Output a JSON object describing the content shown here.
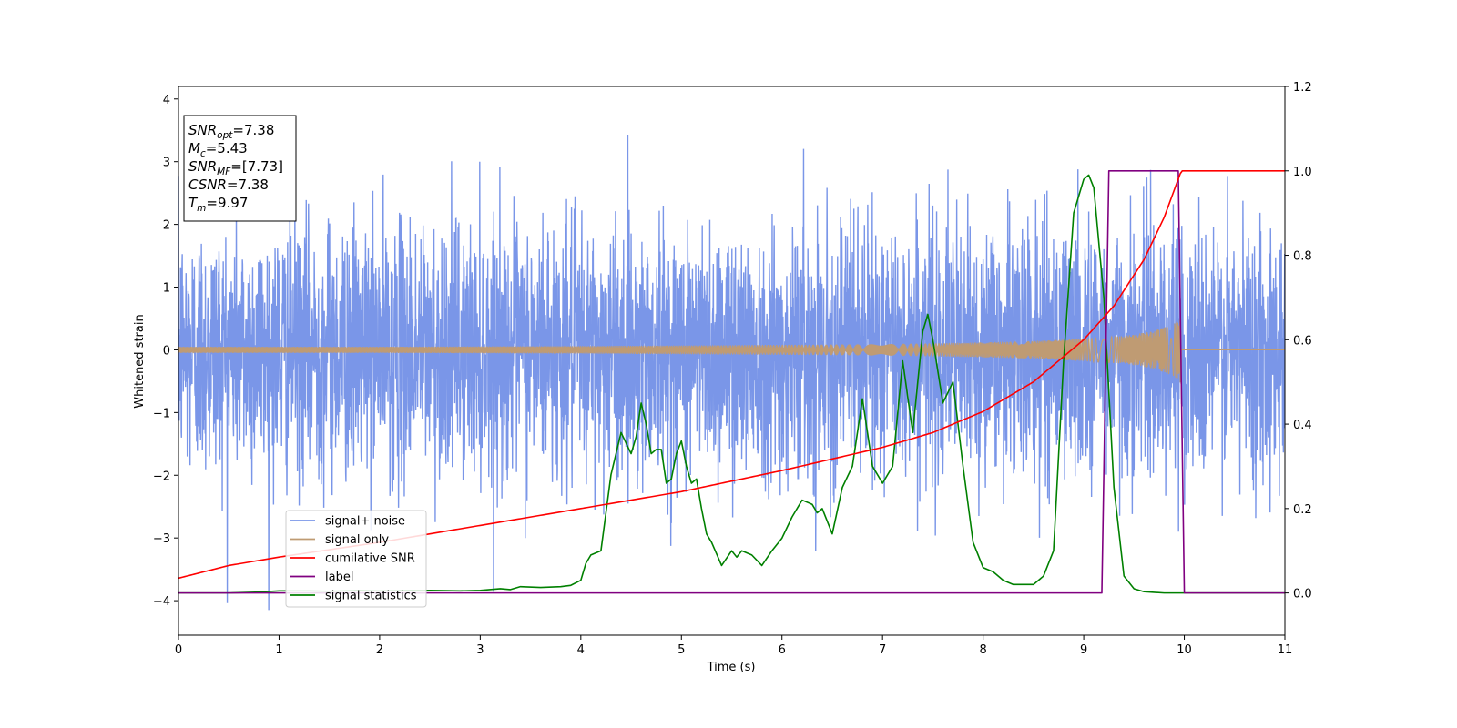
{
  "chart_data": {
    "type": "line",
    "xlabel": "Time (s)",
    "ylabel_left": "Whitened strain",
    "xlim": [
      0,
      11
    ],
    "ylim_left": [
      -4.55,
      4.2
    ],
    "ylim_right": [
      -0.1,
      1.2
    ],
    "x_ticks": [
      "0",
      "1",
      "2",
      "3",
      "4",
      "5",
      "6",
      "7",
      "8",
      "9",
      "10",
      "11"
    ],
    "y_left_ticks": [
      "4",
      "3",
      "2",
      "1",
      "0",
      "−1",
      "−2",
      "−3",
      "−4"
    ],
    "y_right_ticks": [
      "1.2",
      "1.0",
      "0.8",
      "0.6",
      "0.4",
      "0.2",
      "0.0"
    ],
    "grid": false,
    "legend_position": "lower-left",
    "info_box": [
      {
        "base": "SNR",
        "sub": "opt",
        "value": "=7.38"
      },
      {
        "base": "M",
        "sub": "c",
        "value": "=5.43"
      },
      {
        "base": "SNR",
        "sub": "MF",
        "value": "=[7.73]"
      },
      {
        "base": "CSNR",
        "sub": "",
        "value": "=7.38"
      },
      {
        "base": "T",
        "sub": "m",
        "value": "=9.97"
      }
    ],
    "series": [
      {
        "name": "signal+ noise",
        "axis": "left",
        "color": "#7a96e8",
        "description_stats": {
          "approx_std": 1.0,
          "approx_min": -4.15,
          "approx_max": 3.8,
          "samples_per_s": 400
        }
      },
      {
        "name": "signal only",
        "axis": "left",
        "color": "#bf9b73",
        "envelope": {
          "x": [
            0,
            2,
            4,
            6,
            7,
            8,
            8.5,
            9,
            9.4,
            9.7,
            9.9,
            9.97,
            10.0,
            11
          ],
          "amp": [
            0.05,
            0.05,
            0.06,
            0.08,
            0.09,
            0.12,
            0.14,
            0.18,
            0.22,
            0.3,
            0.42,
            0.55,
            0.0,
            0.0
          ]
        }
      },
      {
        "name": "cumilative SNR",
        "axis": "right",
        "color": "#ff0000",
        "x": [
          0,
          0.5,
          1,
          2,
          3,
          4,
          5,
          6,
          7,
          7.5,
          8,
          8.5,
          9,
          9.3,
          9.6,
          9.8,
          9.97,
          10.0,
          11
        ],
        "y": [
          0.035,
          0.065,
          0.085,
          0.12,
          0.16,
          0.2,
          0.24,
          0.29,
          0.345,
          0.38,
          0.43,
          0.5,
          0.6,
          0.68,
          0.79,
          0.89,
          1.0,
          1.0,
          1.0
        ]
      },
      {
        "name": "label",
        "axis": "right",
        "color": "#800080",
        "x": [
          0,
          9.18,
          9.25,
          9.94,
          10.0,
          11
        ],
        "y": [
          0.0,
          0.0,
          1.0,
          1.0,
          0.0,
          0.0
        ]
      },
      {
        "name": "signal statistics",
        "axis": "right",
        "color": "#008000",
        "x": [
          0,
          0.5,
          0.8,
          1.0,
          1.3,
          1.5,
          1.8,
          2.0,
          2.3,
          2.5,
          2.8,
          3.0,
          3.2,
          3.3,
          3.4,
          3.6,
          3.8,
          3.9,
          4.0,
          4.05,
          4.1,
          4.2,
          4.3,
          4.4,
          4.5,
          4.55,
          4.6,
          4.65,
          4.7,
          4.75,
          4.8,
          4.85,
          4.9,
          4.95,
          5.0,
          5.05,
          5.1,
          5.15,
          5.2,
          5.25,
          5.3,
          5.4,
          5.5,
          5.55,
          5.6,
          5.7,
          5.8,
          5.9,
          6.0,
          6.1,
          6.2,
          6.3,
          6.35,
          6.4,
          6.5,
          6.6,
          6.7,
          6.8,
          6.9,
          7.0,
          7.1,
          7.2,
          7.3,
          7.4,
          7.45,
          7.5,
          7.6,
          7.7,
          7.8,
          7.9,
          8.0,
          8.1,
          8.2,
          8.3,
          8.4,
          8.5,
          8.6,
          8.7,
          8.8,
          8.9,
          9.0,
          9.05,
          9.1,
          9.2,
          9.3,
          9.4,
          9.5,
          9.6,
          9.8,
          10.0,
          11
        ],
        "y": [
          0.0,
          0.0,
          0.002,
          0.005,
          0.005,
          0.004,
          0.006,
          0.005,
          0.006,
          0.006,
          0.005,
          0.006,
          0.01,
          0.008,
          0.015,
          0.013,
          0.015,
          0.018,
          0.03,
          0.07,
          0.09,
          0.1,
          0.28,
          0.38,
          0.33,
          0.37,
          0.45,
          0.4,
          0.33,
          0.34,
          0.34,
          0.26,
          0.27,
          0.33,
          0.36,
          0.3,
          0.26,
          0.27,
          0.2,
          0.14,
          0.12,
          0.065,
          0.1,
          0.085,
          0.1,
          0.09,
          0.065,
          0.1,
          0.13,
          0.18,
          0.22,
          0.21,
          0.19,
          0.2,
          0.14,
          0.25,
          0.3,
          0.46,
          0.3,
          0.26,
          0.3,
          0.55,
          0.38,
          0.62,
          0.66,
          0.6,
          0.45,
          0.5,
          0.3,
          0.12,
          0.06,
          0.05,
          0.03,
          0.02,
          0.02,
          0.02,
          0.04,
          0.1,
          0.55,
          0.9,
          0.98,
          0.99,
          0.96,
          0.7,
          0.25,
          0.04,
          0.01,
          0.003,
          0.0,
          0.0,
          0.0
        ]
      }
    ]
  }
}
